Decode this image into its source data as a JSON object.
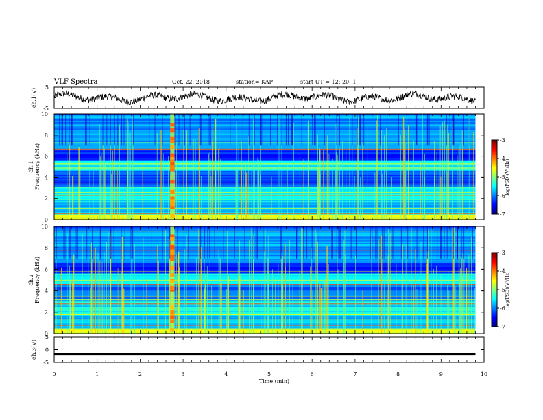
{
  "header": {
    "title": "VLF Spectra",
    "date": "Oct. 22, 2018",
    "station": "station= KAP",
    "start": "start  UT  =   12: 20: 1"
  },
  "chart_data": [
    {
      "type": "line",
      "name": "ch1-waveform",
      "ylabel": "ch.1(V)",
      "ylim": [
        -5,
        5
      ],
      "yticks": [
        "5",
        "-5"
      ],
      "xlim": [
        0,
        10
      ],
      "data_end_min": 9.8
    },
    {
      "type": "heatmap",
      "name": "ch1-spectrogram",
      "ylabel": "ch.1\nFrequency  (kHz)",
      "ylabel_lines": [
        "ch.1",
        "Frequency  (kHz)"
      ],
      "ylim": [
        0,
        10
      ],
      "yticks": [
        "0",
        "2",
        "4",
        "6",
        "8",
        "10"
      ],
      "xlim": [
        0,
        10
      ],
      "colorbar": {
        "label": "log(PSD)(V²/Hz)",
        "range": [
          -7,
          -3
        ],
        "ticks": [
          "-3",
          "-4",
          "-5",
          "-6",
          "-7"
        ]
      }
    },
    {
      "type": "heatmap",
      "name": "ch2-spectrogram",
      "ylabel": "ch.2\nFrequency  (kHz)",
      "ylabel_lines": [
        "ch.2",
        "Frequency  (kHz)"
      ],
      "ylim": [
        0,
        10
      ],
      "yticks": [
        "0",
        "2",
        "4",
        "6",
        "8",
        "10"
      ],
      "xlim": [
        0,
        10
      ],
      "colorbar": {
        "label": "log(PSD)(V²/Hz)",
        "range": [
          -7,
          -3
        ],
        "ticks": [
          "-3",
          "-4",
          "-5",
          "-6",
          "-7"
        ]
      }
    },
    {
      "type": "line",
      "name": "ch3-waveform",
      "ylabel": "ch.3(V)",
      "ylim": [
        -5,
        5
      ],
      "yticks": [
        "5",
        "0",
        "-5"
      ],
      "xlim": [
        0,
        10
      ],
      "value": -1.8
    }
  ],
  "xaxis": {
    "label": "Time  (min)",
    "ticks": [
      "0",
      "1",
      "2",
      "3",
      "4",
      "5",
      "6",
      "7",
      "8",
      "9",
      "10"
    ]
  }
}
